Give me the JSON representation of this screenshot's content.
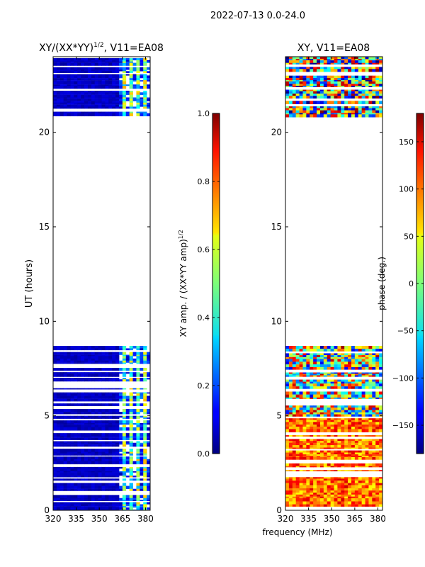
{
  "suptitle": "2022-07-13 0.0-24.0",
  "shared_xlabel": "frequency (MHz)",
  "chart_data": [
    {
      "type": "heatmap",
      "title_main": "XY/(XX*YY)",
      "title_sup": "1/2",
      "title_tail": ", V11=EA08",
      "ylabel": "UT (hours)",
      "x_ticks": [
        "320",
        "335",
        "350",
        "365",
        "380"
      ],
      "x_tick_values": [
        320,
        335,
        350,
        365,
        380
      ],
      "xlim": [
        320,
        383
      ],
      "y_ticks": [
        "0",
        "5",
        "10",
        "15",
        "20"
      ],
      "y_tick_values": [
        0,
        5,
        10,
        15,
        20
      ],
      "ylim": [
        0,
        24
      ],
      "data_ut_ranges": [
        [
          0,
          8.7
        ],
        [
          20.8,
          24
        ]
      ],
      "colormap": "jet",
      "colorbar": {
        "label_main": "XY amp. / (XX*YY amp)",
        "label_sup": "1/2",
        "ticks": [
          "0.0",
          "0.2",
          "0.4",
          "0.6",
          "0.8",
          "1.0"
        ],
        "tick_values": [
          0,
          0.2,
          0.4,
          0.6,
          0.8,
          1.0
        ],
        "range": [
          0,
          1
        ]
      }
    },
    {
      "type": "heatmap",
      "title_main": "XY, V11=EA08",
      "title_sup": "",
      "title_tail": "",
      "ylabel": "",
      "x_ticks": [
        "320",
        "335",
        "350",
        "365",
        "380"
      ],
      "x_tick_values": [
        320,
        335,
        350,
        365,
        380
      ],
      "xlim": [
        320,
        383
      ],
      "y_ticks": [
        "0",
        "5",
        "10",
        "15",
        "20"
      ],
      "y_tick_values": [
        0,
        5,
        10,
        15,
        20
      ],
      "ylim": [
        0,
        24
      ],
      "data_ut_ranges": [
        [
          0,
          8.7
        ],
        [
          20.8,
          24
        ]
      ],
      "colormap": "jet",
      "colorbar": {
        "label_main": "phase (deg.)",
        "label_sup": "",
        "ticks": [
          "−150",
          "−100",
          "−50",
          "0",
          "50",
          "100",
          "150"
        ],
        "tick_values": [
          -150,
          -100,
          -50,
          0,
          50,
          100,
          150
        ],
        "range": [
          -180,
          180
        ]
      }
    }
  ]
}
